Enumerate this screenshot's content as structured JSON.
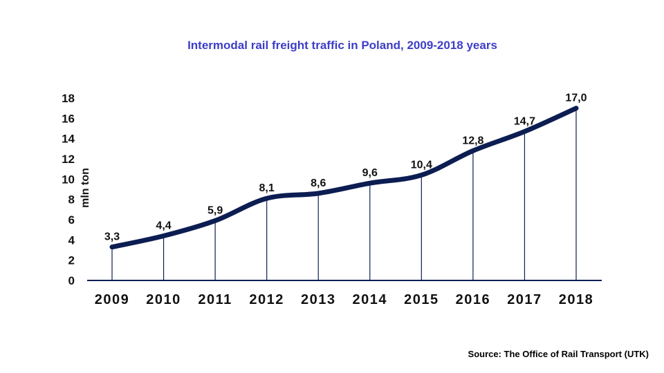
{
  "chart_data": {
    "type": "line",
    "title": "Intermodal rail freight traffic in Poland, 2009-2018 years",
    "ylabel": "mln ton",
    "xlabel": "",
    "categories": [
      "2009",
      "2010",
      "2011",
      "2012",
      "2013",
      "2014",
      "2015",
      "2016",
      "2017",
      "2018"
    ],
    "values": [
      3.3,
      4.4,
      5.9,
      8.1,
      8.6,
      9.6,
      10.4,
      12.8,
      14.7,
      17.0
    ],
    "data_labels": [
      "3,3",
      "4,4",
      "5,9",
      "8,1",
      "8,6",
      "9,6",
      "10,4",
      "12,8",
      "14,7",
      "17,0"
    ],
    "yticks": [
      0,
      2,
      4,
      6,
      8,
      10,
      12,
      14,
      16,
      18
    ],
    "ylim": [
      0,
      18
    ],
    "grid": false,
    "smooth": true,
    "drop_lines": true,
    "line_color": "#0c1d52",
    "title_color": "#3d3dc8"
  },
  "source": "Source: The Office of Rail Transport (UTK)"
}
